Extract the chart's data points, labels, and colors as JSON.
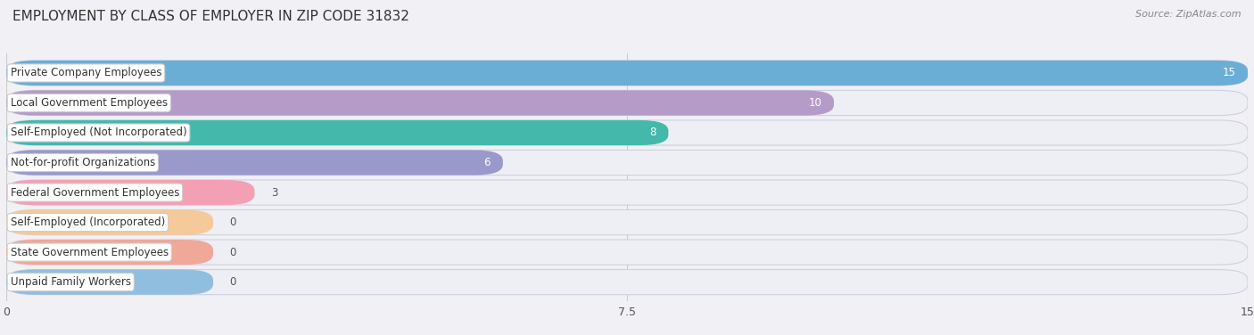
{
  "title": "EMPLOYMENT BY CLASS OF EMPLOYER IN ZIP CODE 31832",
  "source": "Source: ZipAtlas.com",
  "categories": [
    "Private Company Employees",
    "Local Government Employees",
    "Self-Employed (Not Incorporated)",
    "Not-for-profit Organizations",
    "Federal Government Employees",
    "Self-Employed (Incorporated)",
    "State Government Employees",
    "Unpaid Family Workers"
  ],
  "values": [
    15,
    10,
    8,
    6,
    3,
    0,
    0,
    0
  ],
  "bar_colors": [
    "#6aaed6",
    "#b59cc8",
    "#45b8ac",
    "#9999cc",
    "#f4a0b4",
    "#f5c99a",
    "#f0a898",
    "#90bede"
  ],
  "xlim": [
    0,
    15
  ],
  "xticks": [
    0,
    7.5,
    15
  ],
  "background_color": "#f0f0f5",
  "bar_background": "#e8e8f0",
  "title_fontsize": 11,
  "source_fontsize": 8,
  "bar_height": 0.72,
  "value_label_inside_color": "#ffffff",
  "value_label_outside_color": "#555555",
  "zero_bar_width": 2.5
}
